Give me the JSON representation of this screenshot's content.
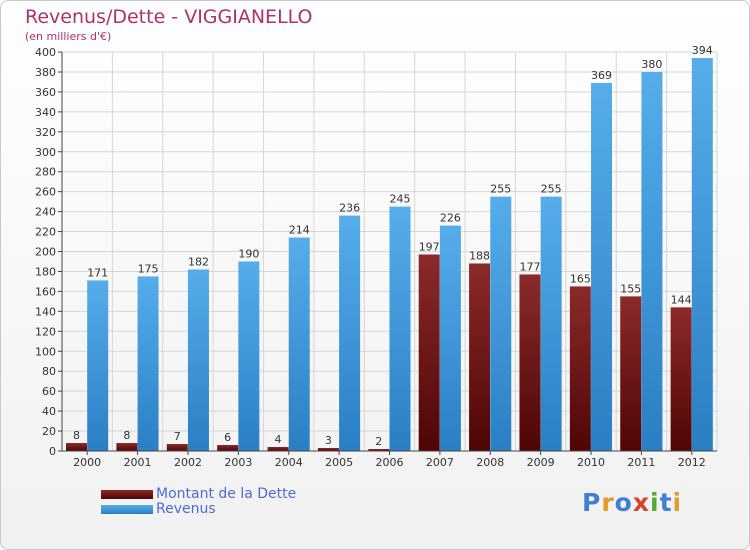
{
  "title": "Revenus/Dette - VIGGIANELLO",
  "subtitle": "(en milliers d'€)",
  "logo": {
    "text": "Proxiti",
    "colors": [
      "#3f7fd6",
      "#e39c2a",
      "#3f7fd6",
      "#d9432b",
      "#55a83a",
      "#3f7fd6",
      "#e39c2a"
    ]
  },
  "chart_data": {
    "type": "bar",
    "categories": [
      "2000",
      "2001",
      "2002",
      "2003",
      "2004",
      "2005",
      "2006",
      "2007",
      "2008",
      "2009",
      "2010",
      "2011",
      "2012"
    ],
    "series": [
      {
        "name": "Montant de la Dette",
        "color": "#7a1a1a",
        "values": [
          8,
          8,
          7,
          6,
          4,
          3,
          2,
          197,
          188,
          177,
          165,
          155,
          144
        ]
      },
      {
        "name": "Revenus",
        "color": "#3d9be0",
        "values": [
          171,
          175,
          182,
          190,
          214,
          236,
          245,
          226,
          255,
          255,
          369,
          380,
          394
        ]
      }
    ],
    "ylim": [
      0,
      400
    ],
    "yticks": [
      "0",
      "20",
      "40",
      "60",
      "80",
      "100",
      "120",
      "140",
      "160",
      "180",
      "200",
      "220",
      "240",
      "260",
      "280",
      "300",
      "320",
      "340",
      "360",
      "380",
      "400"
    ],
    "grid": true,
    "legend": "bottom-left"
  }
}
